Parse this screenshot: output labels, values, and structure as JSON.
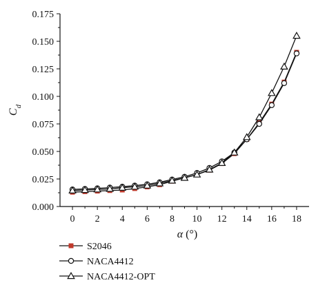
{
  "chart_data": {
    "type": "line",
    "xlabel_symbol": "α",
    "xlabel_unit": "(°)",
    "ylabel_main": "C",
    "ylabel_sub": "d",
    "x": [
      0,
      1,
      2,
      3,
      4,
      5,
      6,
      7,
      8,
      9,
      10,
      11,
      12,
      13,
      14,
      15,
      16,
      17,
      18
    ],
    "xlim": [
      -1,
      19
    ],
    "ylim": [
      0,
      0.175
    ],
    "xticks": [
      "0",
      "2",
      "4",
      "6",
      "8",
      "10",
      "12",
      "14",
      "16",
      "18"
    ],
    "yticks": [
      "0.000",
      "0.025",
      "0.050",
      "0.075",
      "0.100",
      "0.125",
      "0.150",
      "0.175"
    ],
    "grid": false,
    "legend_position": "bottom-left",
    "series": [
      {
        "name": "S2046",
        "marker": "square",
        "color": "#c0392b",
        "values": [
          0.013,
          0.0135,
          0.014,
          0.0145,
          0.015,
          0.0163,
          0.0178,
          0.0198,
          0.023,
          0.026,
          0.029,
          0.033,
          0.039,
          0.048,
          0.061,
          0.076,
          0.093,
          0.113,
          0.14
        ]
      },
      {
        "name": "NACA4412",
        "marker": "circle",
        "color": "#111111",
        "values": [
          0.0155,
          0.016,
          0.0165,
          0.0172,
          0.018,
          0.019,
          0.0202,
          0.022,
          0.0245,
          0.027,
          0.0305,
          0.035,
          0.041,
          0.049,
          0.061,
          0.075,
          0.092,
          0.112,
          0.139
        ]
      },
      {
        "name": "NACA4412-OPT",
        "marker": "triangle",
        "color": "#111111",
        "values": [
          0.0145,
          0.015,
          0.0155,
          0.016,
          0.017,
          0.018,
          0.019,
          0.021,
          0.0235,
          0.026,
          0.029,
          0.0335,
          0.0395,
          0.049,
          0.063,
          0.081,
          0.103,
          0.127,
          0.155
        ]
      }
    ]
  }
}
